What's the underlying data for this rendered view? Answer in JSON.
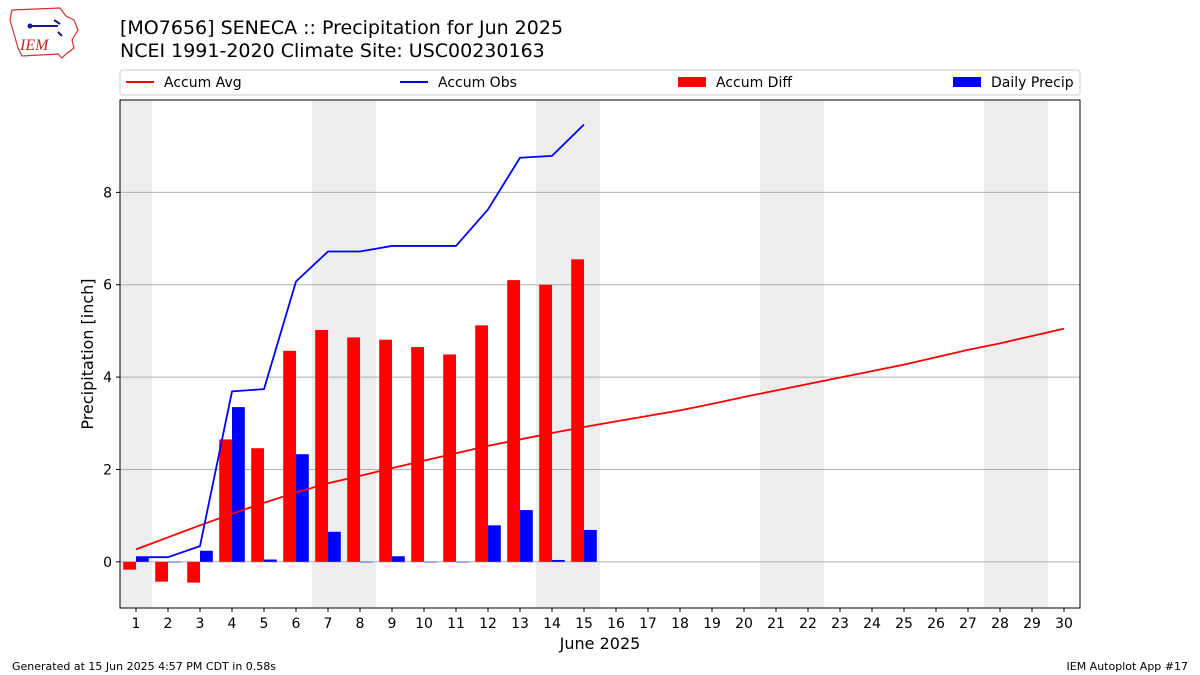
{
  "header": {
    "title_line1": "[MO7656] SENECA :: Precipitation for Jun 2025",
    "title_line2": "NCEI 1991-2020 Climate Site: USC00230163",
    "logo_text": "IEM"
  },
  "footer": {
    "left": "Generated at 15 Jun 2025 4:57 PM CDT in 0.58s",
    "right": "IEM Autoplot App #17"
  },
  "colors": {
    "accum_avg": "#ff0000",
    "accum_obs": "#0000ff",
    "accum_diff": "#ff0000",
    "daily_precip": "#0000ff",
    "weekend_band": "#eeeeee",
    "grid": "#b0b0b0"
  },
  "chart_data": {
    "type": "bar",
    "xlabel": "June 2025",
    "ylabel": "Precipitation [inch]",
    "xlim": [
      0.5,
      30.5
    ],
    "ylim": [
      -1.0,
      10.0
    ],
    "yticks": [
      0,
      2,
      4,
      6,
      8
    ],
    "grid": "y",
    "legend_position": "top",
    "categories": [
      "1",
      "2",
      "3",
      "4",
      "5",
      "6",
      "7",
      "8",
      "9",
      "10",
      "11",
      "12",
      "13",
      "14",
      "15",
      "16",
      "17",
      "18",
      "19",
      "20",
      "21",
      "22",
      "23",
      "24",
      "25",
      "26",
      "27",
      "28",
      "29",
      "30"
    ],
    "weekend_bands": [
      [
        0.5,
        1.5
      ],
      [
        6.5,
        8.5
      ],
      [
        13.5,
        15.5
      ],
      [
        20.5,
        22.5
      ],
      [
        27.5,
        29.5
      ]
    ],
    "legend": [
      "Accum Avg",
      "Accum Obs",
      "Accum Diff",
      "Daily Precip"
    ],
    "series": [
      {
        "name": "Accum Avg",
        "kind": "line",
        "x": [
          1,
          2,
          3,
          4,
          5,
          6,
          7,
          8,
          9,
          10,
          11,
          12,
          13,
          14,
          15,
          16,
          17,
          18,
          19,
          20,
          21,
          22,
          23,
          24,
          25,
          26,
          27,
          28,
          29,
          30
        ],
        "values": [
          0.27,
          0.53,
          0.79,
          1.04,
          1.28,
          1.5,
          1.7,
          1.86,
          2.03,
          2.19,
          2.35,
          2.51,
          2.65,
          2.79,
          2.92,
          3.04,
          3.16,
          3.28,
          3.42,
          3.57,
          3.71,
          3.85,
          3.99,
          4.13,
          4.27,
          4.43,
          4.59,
          4.73,
          4.89,
          5.05
        ]
      },
      {
        "name": "Accum Obs",
        "kind": "line",
        "x": [
          1,
          2,
          3,
          4,
          5,
          6,
          7,
          8,
          9,
          10,
          11,
          12,
          13,
          14,
          15
        ],
        "values": [
          0.1,
          0.1,
          0.34,
          3.69,
          3.74,
          6.07,
          6.72,
          6.72,
          6.84,
          6.84,
          6.84,
          7.63,
          8.75,
          8.79,
          9.47
        ]
      },
      {
        "name": "Accum Diff",
        "kind": "bar",
        "offset": -0.2,
        "x": [
          1,
          2,
          3,
          4,
          5,
          6,
          7,
          8,
          9,
          10,
          11,
          12,
          13,
          14,
          15
        ],
        "values": [
          -0.17,
          -0.43,
          -0.45,
          2.65,
          2.46,
          4.57,
          5.02,
          4.86,
          4.81,
          4.65,
          4.49,
          5.12,
          6.1,
          6.0,
          6.55
        ]
      },
      {
        "name": "Daily Precip",
        "kind": "bar",
        "offset": 0.2,
        "x": [
          1,
          2,
          3,
          4,
          5,
          6,
          7,
          8,
          9,
          10,
          11,
          12,
          13,
          14,
          15
        ],
        "values": [
          0.1,
          0.0,
          0.24,
          3.35,
          0.05,
          2.33,
          0.65,
          0.0,
          0.12,
          0.0,
          0.0,
          0.79,
          1.12,
          0.04,
          0.69
        ]
      }
    ]
  }
}
